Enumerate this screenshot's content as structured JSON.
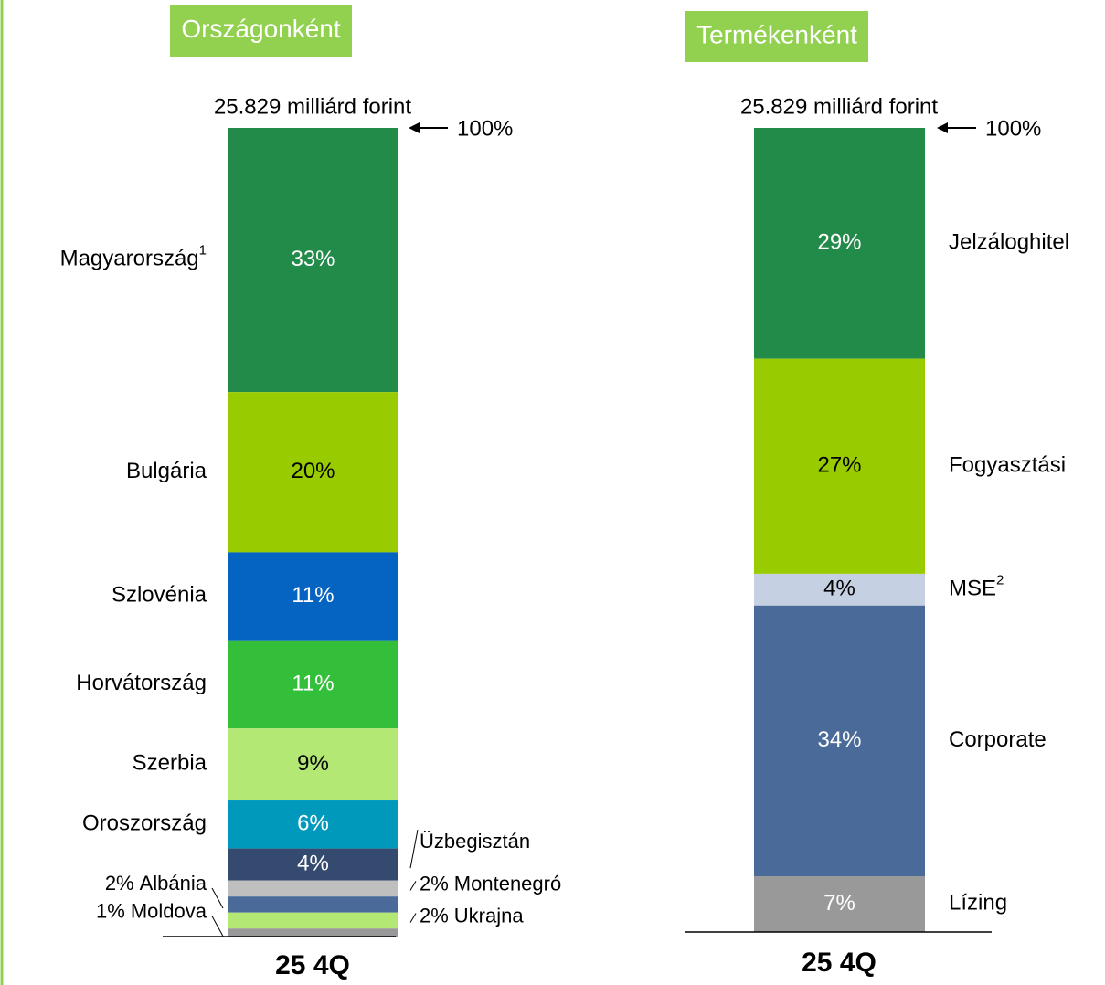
{
  "chart_data": [
    {
      "type": "stacked-bar",
      "title": "Országonként",
      "total_label": "25.829 milliárd forint",
      "top_label": "100%",
      "x_label": "25 4Q",
      "categories": [
        "Magyarország",
        "Bulgária",
        "Szlovénia",
        "Horvátország",
        "Szerbia",
        "Oroszország",
        "Üzbegisztán",
        "Montenegró",
        "Albánia",
        "Ukrajna",
        "Moldova"
      ],
      "footnotes": [
        "1",
        null,
        null,
        null,
        null,
        null,
        null,
        null,
        null,
        null,
        null
      ],
      "values": [
        33,
        20,
        11,
        11,
        9,
        6,
        4,
        2,
        2,
        2,
        1
      ],
      "value_labels": [
        "33%",
        "20%",
        "11%",
        "11%",
        "9%",
        "6%",
        "4%",
        "2%",
        "2%",
        "2%",
        "1%"
      ],
      "colors": [
        "#238b4a",
        "#99cc00",
        "#0563c1",
        "#33bf3a",
        "#b3e874",
        "#0099bb",
        "#344a6e",
        "#c0bfbf",
        "#4a6b9a",
        "#b3e874",
        "#999999"
      ]
    },
    {
      "type": "stacked-bar",
      "title": "Termékenként",
      "total_label": "25.829 milliárd forint",
      "top_label": "100%",
      "x_label": "25 4Q",
      "categories": [
        "Jelzáloghitel",
        "Fogyasztási",
        "MSE",
        "Corporate",
        "Lízing"
      ],
      "footnotes": [
        null,
        null,
        "2",
        null,
        null
      ],
      "values": [
        29,
        27,
        4,
        34,
        7
      ],
      "value_labels": [
        "29%",
        "27%",
        "4%",
        "34%",
        "7%"
      ],
      "colors": [
        "#238b4a",
        "#99cc00",
        "#c5d0e2",
        "#4a6b9a",
        "#999999"
      ]
    }
  ]
}
